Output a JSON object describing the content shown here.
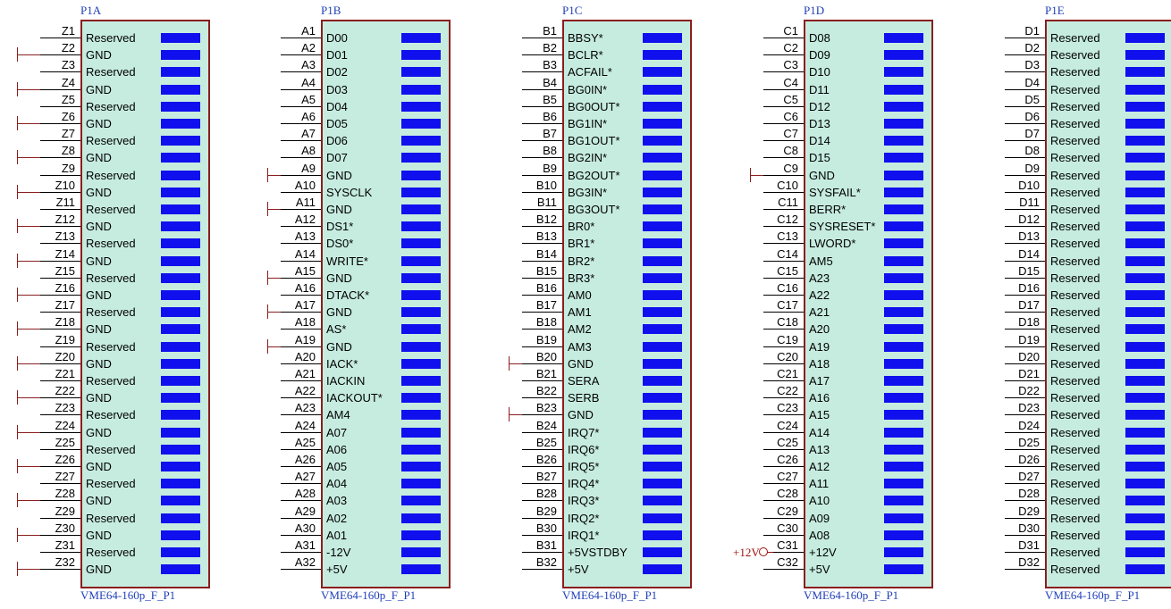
{
  "colors": {
    "body_fill": "#c6ece0",
    "body_border": "#8b1e1e",
    "label_blue": "#1f3fb8",
    "pin_bar": "#1010ee",
    "gnd_wire": "#8b1e1e"
  },
  "blocks": [
    {
      "designator": "P1A",
      "footer": "VME64-160p_F_P1",
      "pins": [
        {
          "num": "Z1",
          "name": "Reserved"
        },
        {
          "num": "Z2",
          "name": "GND"
        },
        {
          "num": "Z3",
          "name": "Reserved"
        },
        {
          "num": "Z4",
          "name": "GND"
        },
        {
          "num": "Z5",
          "name": "Reserved"
        },
        {
          "num": "Z6",
          "name": "GND"
        },
        {
          "num": "Z7",
          "name": "Reserved"
        },
        {
          "num": "Z8",
          "name": "GND"
        },
        {
          "num": "Z9",
          "name": "Reserved"
        },
        {
          "num": "Z10",
          "name": "GND"
        },
        {
          "num": "Z11",
          "name": "Reserved"
        },
        {
          "num": "Z12",
          "name": "GND"
        },
        {
          "num": "Z13",
          "name": "Reserved"
        },
        {
          "num": "Z14",
          "name": "GND"
        },
        {
          "num": "Z15",
          "name": "Reserved"
        },
        {
          "num": "Z16",
          "name": "GND"
        },
        {
          "num": "Z17",
          "name": "Reserved"
        },
        {
          "num": "Z18",
          "name": "GND"
        },
        {
          "num": "Z19",
          "name": "Reserved"
        },
        {
          "num": "Z20",
          "name": "GND"
        },
        {
          "num": "Z21",
          "name": "Reserved"
        },
        {
          "num": "Z22",
          "name": "GND"
        },
        {
          "num": "Z23",
          "name": "Reserved"
        },
        {
          "num": "Z24",
          "name": "GND"
        },
        {
          "num": "Z25",
          "name": "Reserved"
        },
        {
          "num": "Z26",
          "name": "GND"
        },
        {
          "num": "Z27",
          "name": "Reserved"
        },
        {
          "num": "Z28",
          "name": "GND"
        },
        {
          "num": "Z29",
          "name": "Reserved"
        },
        {
          "num": "Z30",
          "name": "GND"
        },
        {
          "num": "Z31",
          "name": "Reserved"
        },
        {
          "num": "Z32",
          "name": "GND"
        }
      ]
    },
    {
      "designator": "P1B",
      "footer": "VME64-160p_F_P1",
      "pins": [
        {
          "num": "A1",
          "name": "D00"
        },
        {
          "num": "A2",
          "name": "D01"
        },
        {
          "num": "A3",
          "name": "D02"
        },
        {
          "num": "A4",
          "name": "D03"
        },
        {
          "num": "A5",
          "name": "D04"
        },
        {
          "num": "A6",
          "name": "D05"
        },
        {
          "num": "A7",
          "name": "D06"
        },
        {
          "num": "A8",
          "name": "D07"
        },
        {
          "num": "A9",
          "name": "GND"
        },
        {
          "num": "A10",
          "name": "SYSCLK"
        },
        {
          "num": "A11",
          "name": "GND"
        },
        {
          "num": "A12",
          "name": "DS1*"
        },
        {
          "num": "A13",
          "name": "DS0*"
        },
        {
          "num": "A14",
          "name": "WRITE*"
        },
        {
          "num": "A15",
          "name": "GND"
        },
        {
          "num": "A16",
          "name": "DTACK*"
        },
        {
          "num": "A17",
          "name": "GND"
        },
        {
          "num": "A18",
          "name": "AS*"
        },
        {
          "num": "A19",
          "name": "GND"
        },
        {
          "num": "A20",
          "name": "IACK*"
        },
        {
          "num": "A21",
          "name": "IACKIN"
        },
        {
          "num": "A22",
          "name": "IACKOUT*"
        },
        {
          "num": "A23",
          "name": "AM4"
        },
        {
          "num": "A24",
          "name": "A07"
        },
        {
          "num": "A25",
          "name": "A06"
        },
        {
          "num": "A26",
          "name": "A05"
        },
        {
          "num": "A27",
          "name": "A04"
        },
        {
          "num": "A28",
          "name": "A03"
        },
        {
          "num": "A29",
          "name": "A02"
        },
        {
          "num": "A30",
          "name": "A01"
        },
        {
          "num": "A31",
          "name": "-12V"
        },
        {
          "num": "A32",
          "name": "+5V"
        }
      ]
    },
    {
      "designator": "P1C",
      "footer": "VME64-160p_F_P1",
      "pins": [
        {
          "num": "B1",
          "name": "BBSY*"
        },
        {
          "num": "B2",
          "name": "BCLR*"
        },
        {
          "num": "B3",
          "name": "ACFAIL*"
        },
        {
          "num": "B4",
          "name": "BG0IN*"
        },
        {
          "num": "B5",
          "name": "BG0OUT*"
        },
        {
          "num": "B6",
          "name": "BG1IN*"
        },
        {
          "num": "B7",
          "name": "BG1OUT*"
        },
        {
          "num": "B8",
          "name": "BG2IN*"
        },
        {
          "num": "B9",
          "name": "BG2OUT*"
        },
        {
          "num": "B10",
          "name": "BG3IN*"
        },
        {
          "num": "B11",
          "name": "BG3OUT*"
        },
        {
          "num": "B12",
          "name": "BR0*"
        },
        {
          "num": "B13",
          "name": "BR1*"
        },
        {
          "num": "B14",
          "name": "BR2*"
        },
        {
          "num": "B15",
          "name": "BR3*"
        },
        {
          "num": "B16",
          "name": "AM0"
        },
        {
          "num": "B17",
          "name": "AM1"
        },
        {
          "num": "B18",
          "name": "AM2"
        },
        {
          "num": "B19",
          "name": "AM3"
        },
        {
          "num": "B20",
          "name": "GND"
        },
        {
          "num": "B21",
          "name": "SERA"
        },
        {
          "num": "B22",
          "name": "SERB"
        },
        {
          "num": "B23",
          "name": "GND"
        },
        {
          "num": "B24",
          "name": "IRQ7*"
        },
        {
          "num": "B25",
          "name": "IRQ6*"
        },
        {
          "num": "B26",
          "name": "IRQ5*"
        },
        {
          "num": "B27",
          "name": "IRQ4*"
        },
        {
          "num": "B28",
          "name": "IRQ3*"
        },
        {
          "num": "B29",
          "name": "IRQ2*"
        },
        {
          "num": "B30",
          "name": "IRQ1*"
        },
        {
          "num": "B31",
          "name": "+5VSTDBY"
        },
        {
          "num": "B32",
          "name": "+5V"
        }
      ]
    },
    {
      "designator": "P1D",
      "footer": "VME64-160p_F_P1",
      "power_label": "+12V",
      "pins": [
        {
          "num": "C1",
          "name": "D08"
        },
        {
          "num": "C2",
          "name": "D09"
        },
        {
          "num": "C3",
          "name": "D10"
        },
        {
          "num": "C4",
          "name": "D11"
        },
        {
          "num": "C5",
          "name": "D12"
        },
        {
          "num": "C6",
          "name": "D13"
        },
        {
          "num": "C7",
          "name": "D14"
        },
        {
          "num": "C8",
          "name": "D15"
        },
        {
          "num": "C9",
          "name": "GND"
        },
        {
          "num": "C10",
          "name": "SYSFAIL*"
        },
        {
          "num": "C11",
          "name": "BERR*"
        },
        {
          "num": "C12",
          "name": "SYSRESET*"
        },
        {
          "num": "C13",
          "name": "LWORD*"
        },
        {
          "num": "C14",
          "name": "AM5"
        },
        {
          "num": "C15",
          "name": "A23"
        },
        {
          "num": "C16",
          "name": "A22"
        },
        {
          "num": "C17",
          "name": "A21"
        },
        {
          "num": "C18",
          "name": "A20"
        },
        {
          "num": "C19",
          "name": "A19"
        },
        {
          "num": "C20",
          "name": "A18"
        },
        {
          "num": "C21",
          "name": "A17"
        },
        {
          "num": "C22",
          "name": "A16"
        },
        {
          "num": "C23",
          "name": "A15"
        },
        {
          "num": "C24",
          "name": "A14"
        },
        {
          "num": "C25",
          "name": "A13"
        },
        {
          "num": "C26",
          "name": "A12"
        },
        {
          "num": "C27",
          "name": "A11"
        },
        {
          "num": "C28",
          "name": "A10"
        },
        {
          "num": "C29",
          "name": "A09"
        },
        {
          "num": "C30",
          "name": "A08"
        },
        {
          "num": "C31",
          "name": "+12V"
        },
        {
          "num": "C32",
          "name": "+5V"
        }
      ]
    },
    {
      "designator": "P1E",
      "footer": "VME64-160p_F_P1",
      "pins": [
        {
          "num": "D1",
          "name": "Reserved"
        },
        {
          "num": "D2",
          "name": "Reserved"
        },
        {
          "num": "D3",
          "name": "Reserved"
        },
        {
          "num": "D4",
          "name": "Reserved"
        },
        {
          "num": "D5",
          "name": "Reserved"
        },
        {
          "num": "D6",
          "name": "Reserved"
        },
        {
          "num": "D7",
          "name": "Reserved"
        },
        {
          "num": "D8",
          "name": "Reserved"
        },
        {
          "num": "D9",
          "name": "Reserved"
        },
        {
          "num": "D10",
          "name": "Reserved"
        },
        {
          "num": "D11",
          "name": "Reserved"
        },
        {
          "num": "D12",
          "name": "Reserved"
        },
        {
          "num": "D13",
          "name": "Reserved"
        },
        {
          "num": "D14",
          "name": "Reserved"
        },
        {
          "num": "D15",
          "name": "Reserved"
        },
        {
          "num": "D16",
          "name": "Reserved"
        },
        {
          "num": "D17",
          "name": "Reserved"
        },
        {
          "num": "D18",
          "name": "Reserved"
        },
        {
          "num": "D19",
          "name": "Reserved"
        },
        {
          "num": "D20",
          "name": "Reserved"
        },
        {
          "num": "D21",
          "name": "Reserved"
        },
        {
          "num": "D22",
          "name": "Reserved"
        },
        {
          "num": "D23",
          "name": "Reserved"
        },
        {
          "num": "D24",
          "name": "Reserved"
        },
        {
          "num": "D25",
          "name": "Reserved"
        },
        {
          "num": "D26",
          "name": "Reserved"
        },
        {
          "num": "D27",
          "name": "Reserved"
        },
        {
          "num": "D28",
          "name": "Reserved"
        },
        {
          "num": "D29",
          "name": "Reserved"
        },
        {
          "num": "D30",
          "name": "Reserved"
        },
        {
          "num": "D31",
          "name": "Reserved"
        },
        {
          "num": "D32",
          "name": "Reserved"
        }
      ]
    }
  ]
}
